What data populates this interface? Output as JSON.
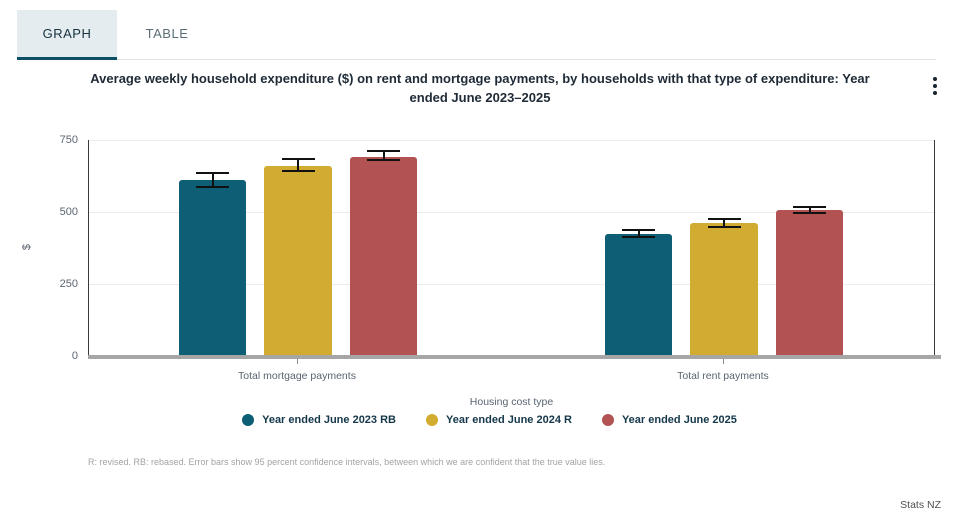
{
  "tabs": {
    "graph": "GRAPH",
    "table": "TABLE"
  },
  "title": "Average weekly household expenditure ($) on rent and mortgage payments, by households with that type of expenditure: Year ended June 2023–2025",
  "menu": {
    "icon": "kebab-menu-icon"
  },
  "chart_data": {
    "type": "bar",
    "title": "Average weekly household expenditure ($) on rent and mortgage payments, by households with that type of expenditure: Year ended June 2023–2025",
    "categories": [
      "Total mortgage payments",
      "Total rent payments"
    ],
    "series": [
      {
        "name": "Year ended June 2023 RB",
        "color": "#0e5e76",
        "values": [
          610,
          425
        ],
        "ci_low": [
          586,
          414
        ],
        "ci_high": [
          634,
          438
        ]
      },
      {
        "name": "Year ended June 2024 R",
        "color": "#d2ac30",
        "values": [
          660,
          462
        ],
        "ci_low": [
          644,
          449
        ],
        "ci_high": [
          683,
          476
        ]
      },
      {
        "name": "Year ended June 2025",
        "color": "#b25252",
        "values": [
          692,
          507
        ],
        "ci_low": [
          679,
          496
        ],
        "ci_high": [
          712,
          519
        ]
      }
    ],
    "xlabel": "Housing cost type",
    "ylabel": "$",
    "ylim": [
      0,
      750
    ],
    "yticks": [
      0,
      250,
      500,
      750
    ],
    "grid": true,
    "legend_position": "bottom",
    "error_bars_note": "95 percent confidence intervals"
  },
  "footnote": "R: revised. RB: rebased. Error bars show 95 percent confidence intervals, between which we are confident that the true value lies.",
  "attribution": "Stats NZ"
}
